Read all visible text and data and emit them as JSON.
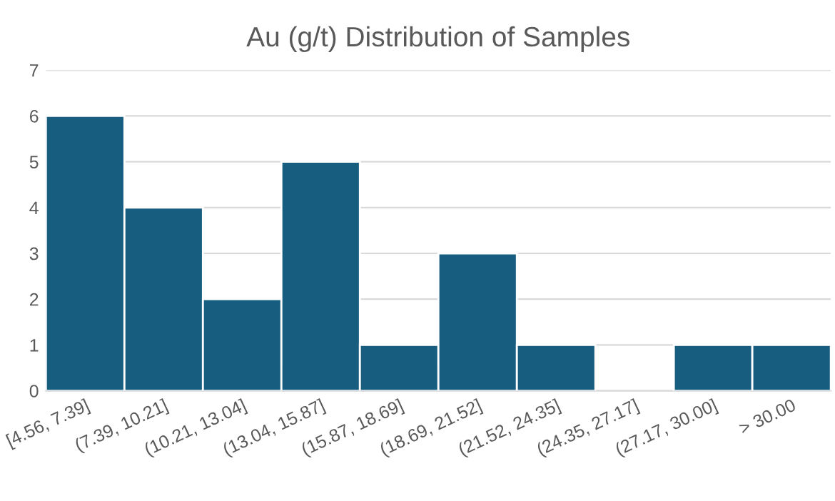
{
  "chart_data": {
    "type": "bar",
    "title": "Au (g/t) Distribution of Samples",
    "categories": [
      "[4.56, 7.39]",
      "(7.39, 10.21]",
      "(10.21, 13.04]",
      "(13.04, 15.87]",
      "(15.87, 18.69]",
      "(18.69, 21.52]",
      "(21.52, 24.35]",
      "(24.35, 27.17]",
      "(27.17, 30.00]",
      "> 30.00"
    ],
    "values": [
      6,
      4,
      2,
      5,
      1,
      3,
      1,
      0,
      1,
      1
    ],
    "color": "#175d80",
    "ylim": [
      0,
      7
    ],
    "yticks": [
      0,
      1,
      2,
      3,
      4,
      5,
      6,
      7
    ],
    "grid": "y"
  }
}
